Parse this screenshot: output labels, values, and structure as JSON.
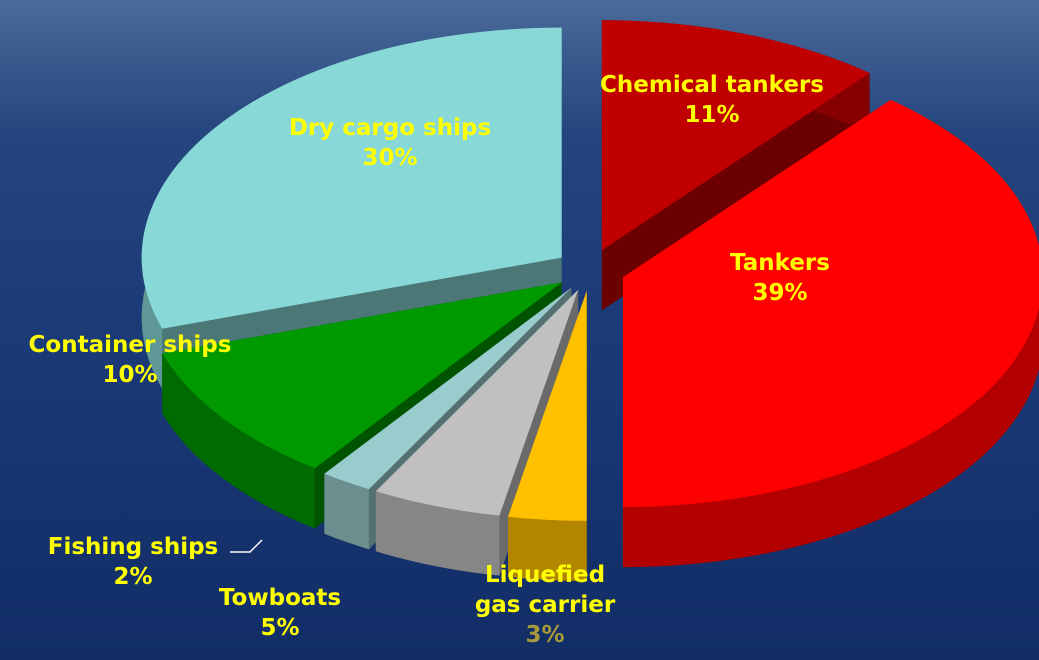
{
  "chart_data": {
    "type": "pie",
    "categories": [
      "Chemical tankers",
      "Tankers",
      "Liquefied gas carrier",
      "Towboats",
      "Fishing ships",
      "Container ships",
      "Dry cargo ships"
    ],
    "values": [
      11,
      39,
      3,
      5,
      2,
      10,
      30
    ],
    "value_labels": [
      "11%",
      "39%",
      "3%",
      "5%",
      "2%",
      "10%",
      "30%"
    ],
    "colors": [
      "#c00000",
      "#ff0000",
      "#ffc000",
      "#c0c0c0",
      "#99cccc",
      "#009900",
      "#88d8d8"
    ]
  }
}
